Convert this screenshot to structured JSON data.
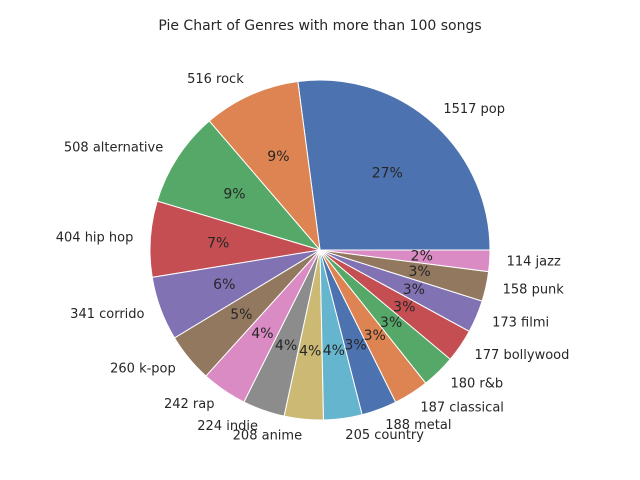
{
  "chart_data": {
    "type": "pie",
    "title": "Pie Chart of Genres with more than 100 songs",
    "start_angle_deg": 0,
    "direction": "counterclockwise",
    "slices": [
      {
        "label": "1517 pop",
        "value": 1517,
        "pct": "27%",
        "color": "#4c72b0"
      },
      {
        "label": "516 rock",
        "value": 516,
        "pct": "9%",
        "color": "#dd8452"
      },
      {
        "label": "508 alternative",
        "value": 508,
        "pct": "9%",
        "color": "#55a868"
      },
      {
        "label": "404 hip hop",
        "value": 404,
        "pct": "7%",
        "color": "#c44e52"
      },
      {
        "label": "341 corrido",
        "value": 341,
        "pct": "6%",
        "color": "#8172b3"
      },
      {
        "label": "260 k-pop",
        "value": 260,
        "pct": "5%",
        "color": "#937860"
      },
      {
        "label": "242 rap",
        "value": 242,
        "pct": "4%",
        "color": "#da8bc3"
      },
      {
        "label": "224 indie",
        "value": 224,
        "pct": "4%",
        "color": "#8c8c8c"
      },
      {
        "label": "208 anime",
        "value": 208,
        "pct": "4%",
        "color": "#ccb974"
      },
      {
        "label": "205 country",
        "value": 205,
        "pct": "4%",
        "color": "#64b5cd"
      },
      {
        "label": "188 metal",
        "value": 188,
        "pct": "3%",
        "color": "#4c72b0"
      },
      {
        "label": "187 classical",
        "value": 187,
        "pct": "3%",
        "color": "#dd8452"
      },
      {
        "label": "180 r&b",
        "value": 180,
        "pct": "3%",
        "color": "#55a868"
      },
      {
        "label": "177 bollywood",
        "value": 177,
        "pct": "3%",
        "color": "#c44e52"
      },
      {
        "label": "173 filmi",
        "value": 173,
        "pct": "3%",
        "color": "#8172b3"
      },
      {
        "label": "158 punk",
        "value": 158,
        "pct": "3%",
        "color": "#937860"
      },
      {
        "label": "114 jazz",
        "value": 114,
        "pct": "2%",
        "color": "#da8bc3"
      }
    ]
  }
}
